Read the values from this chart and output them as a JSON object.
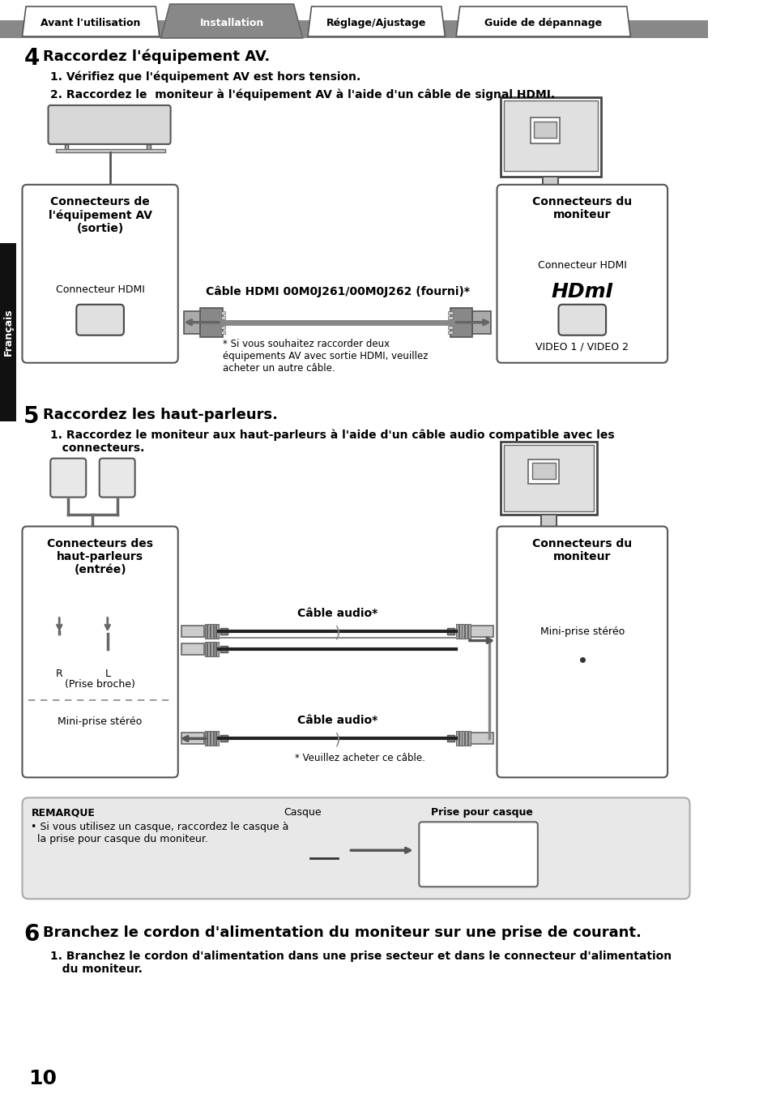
{
  "bg_color": "#ffffff",
  "tab_labels": [
    "Avant l'utilisation",
    "Installation",
    "Réglage/Ajustage",
    "Guide de dépannage"
  ],
  "tab_active": 1,
  "section4_num": "4",
  "section4_title": "Raccordez l'équipement AV.",
  "section4_step1": "1. Vérifiez que l'équipement AV est hors tension.",
  "section4_step2": "2. Raccordez le  moniteur à l'équipement AV à l'aide d'un câble de signal HDMI.",
  "box1_title": "Connecteurs de\nl'équipement AV\n(sortie)",
  "box1_label": "Connecteur HDMI",
  "cable_label": "Câble HDMI 00M0J261/00M0J262 (fourni)*",
  "cable_note": "* Si vous souhaitez raccorder deux\néquipements AV avec sortie HDMI, veuillez\nacheter un autre câble.",
  "box2_title": "Connecteurs du\nmoniteur",
  "box2_label1": "Connecteur HDMI",
  "box2_hdmi": "HDmI",
  "box2_label2": "VIDEO 1 / VIDEO 2",
  "section5_num": "5",
  "section5_title": "Raccordez les haut-parleurs.",
  "section5_step1": "1. Raccordez le moniteur aux haut-parleurs à l'aide d'un câble audio compatible avec les\n   connecteurs.",
  "box3_title": "Connecteurs des\nhaut-parleurs\n(entrée)",
  "box4_title": "Connecteurs du\nmoniteur",
  "cable_audio_label": "Câble audio*",
  "box3_label_r": "R",
  "box3_label_l": "L",
  "box3_label3": "(Prise broche)",
  "box3_label4": "Mini-prise stéréo",
  "box4_label1": "Mini-prise stéréo",
  "cable_note2": "* Veuillez acheter ce câble.",
  "note_title": "REMARQUE",
  "note_text": "• Si vous utilisez un casque, raccordez le casque à\n  la prise pour casque du moniteur.",
  "casque_label": "Casque",
  "prise_label": "Prise pour casque",
  "section6_num": "6",
  "section6_title": "Branchez le cordon d'alimentation du moniteur sur une prise de courant.",
  "section6_step1": "1. Branchez le cordon d'alimentation dans une prise secteur et dans le connecteur d'alimentation\n   du moniteur.",
  "page_num": "10",
  "francais_label": "Français"
}
